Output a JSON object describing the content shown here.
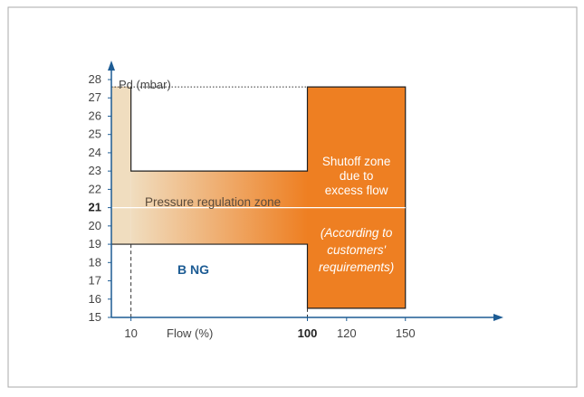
{
  "chart_data": {
    "type": "area",
    "title": "",
    "xlabel": "Flow (%)",
    "ylabel": "Pd (mbar)",
    "xticks": [
      "10",
      "100",
      "120",
      "150"
    ],
    "xtick_values": [
      10,
      100,
      120,
      150
    ],
    "emphasized_xtick": "100",
    "yticks": [
      "15",
      "16",
      "17",
      "18",
      "19",
      "20",
      "21",
      "22",
      "23",
      "24",
      "25",
      "26",
      "27",
      "28"
    ],
    "emphasized_ytick": "21",
    "xlim": [
      0,
      162
    ],
    "ylim": [
      15,
      28
    ],
    "setpoint": 21,
    "zones": [
      {
        "name": "pressure-regulation",
        "label": "Pressure regulation zone",
        "x_range": [
          10,
          100
        ],
        "y_range": [
          19,
          23
        ],
        "color_from": "#f0ddbf",
        "color_to": "#ee7f22"
      },
      {
        "name": "startup-band",
        "x_range": [
          0,
          10
        ],
        "y_range": [
          19,
          27.6
        ],
        "color": "#f0ddbf"
      },
      {
        "name": "shutoff",
        "label_lines": [
          "Shutoff zone",
          "due to",
          "excess flow"
        ],
        "note_lines": [
          "(According to",
          "customers'",
          "requirements)"
        ],
        "x_range": [
          100,
          150
        ],
        "y_range": [
          15.5,
          27.6
        ],
        "color": "#ee7f22"
      }
    ],
    "series_label": "B NG",
    "colors": {
      "axis": "#1d5c94",
      "text": "#444444",
      "label_blue": "#1d5c94",
      "orange": "#ee7f22"
    }
  }
}
